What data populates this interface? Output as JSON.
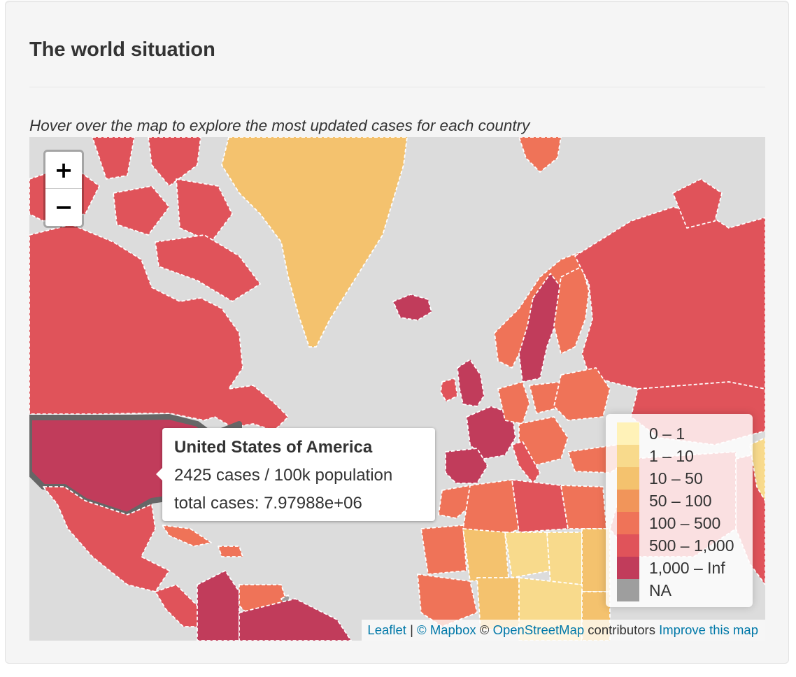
{
  "header": {
    "title": "The world situation",
    "subtitle": "Hover over the map to explore the most updated cases for each country"
  },
  "map": {
    "zoom_in_label": "+",
    "zoom_out_label": "−",
    "colors": {
      "ocean": "#dcdcdc",
      "bin_0_1": "#fff2b8",
      "bin_1_10": "#f8da8c",
      "bin_10_50": "#f4c26e",
      "bin_50_100": "#f1955a",
      "bin_100_500": "#ef7358",
      "bin_500_1000": "#e0535a",
      "bin_1000_inf": "#c13c5b",
      "na": "#9e9e9e",
      "highlight_border": "#666666"
    },
    "tooltip": {
      "country": "United States of America",
      "cases_per_100k": "2425 cases / 100k population",
      "total_cases": "total cases: 7.97988e+06"
    },
    "legend": {
      "items": [
        {
          "label": "0 – 1",
          "color": "#fff2b8"
        },
        {
          "label": "1 – 10",
          "color": "#f8da8c"
        },
        {
          "label": "10 – 50",
          "color": "#f4c26e"
        },
        {
          "label": "50 – 100",
          "color": "#f1955a"
        },
        {
          "label": "100 – 500",
          "color": "#ef7358"
        },
        {
          "label": "500 – 1,000",
          "color": "#e0535a"
        },
        {
          "label": "1,000 – Inf",
          "color": "#c13c5b"
        },
        {
          "label": "NA",
          "color": "#9e9e9e"
        }
      ]
    },
    "attribution": {
      "leaflet": "Leaflet",
      "sep": " | ",
      "mapbox": "© Mapbox",
      "copy": " © ",
      "osm": "OpenStreetMap",
      "contributors": " contributors ",
      "improve": "Improve this map"
    }
  }
}
